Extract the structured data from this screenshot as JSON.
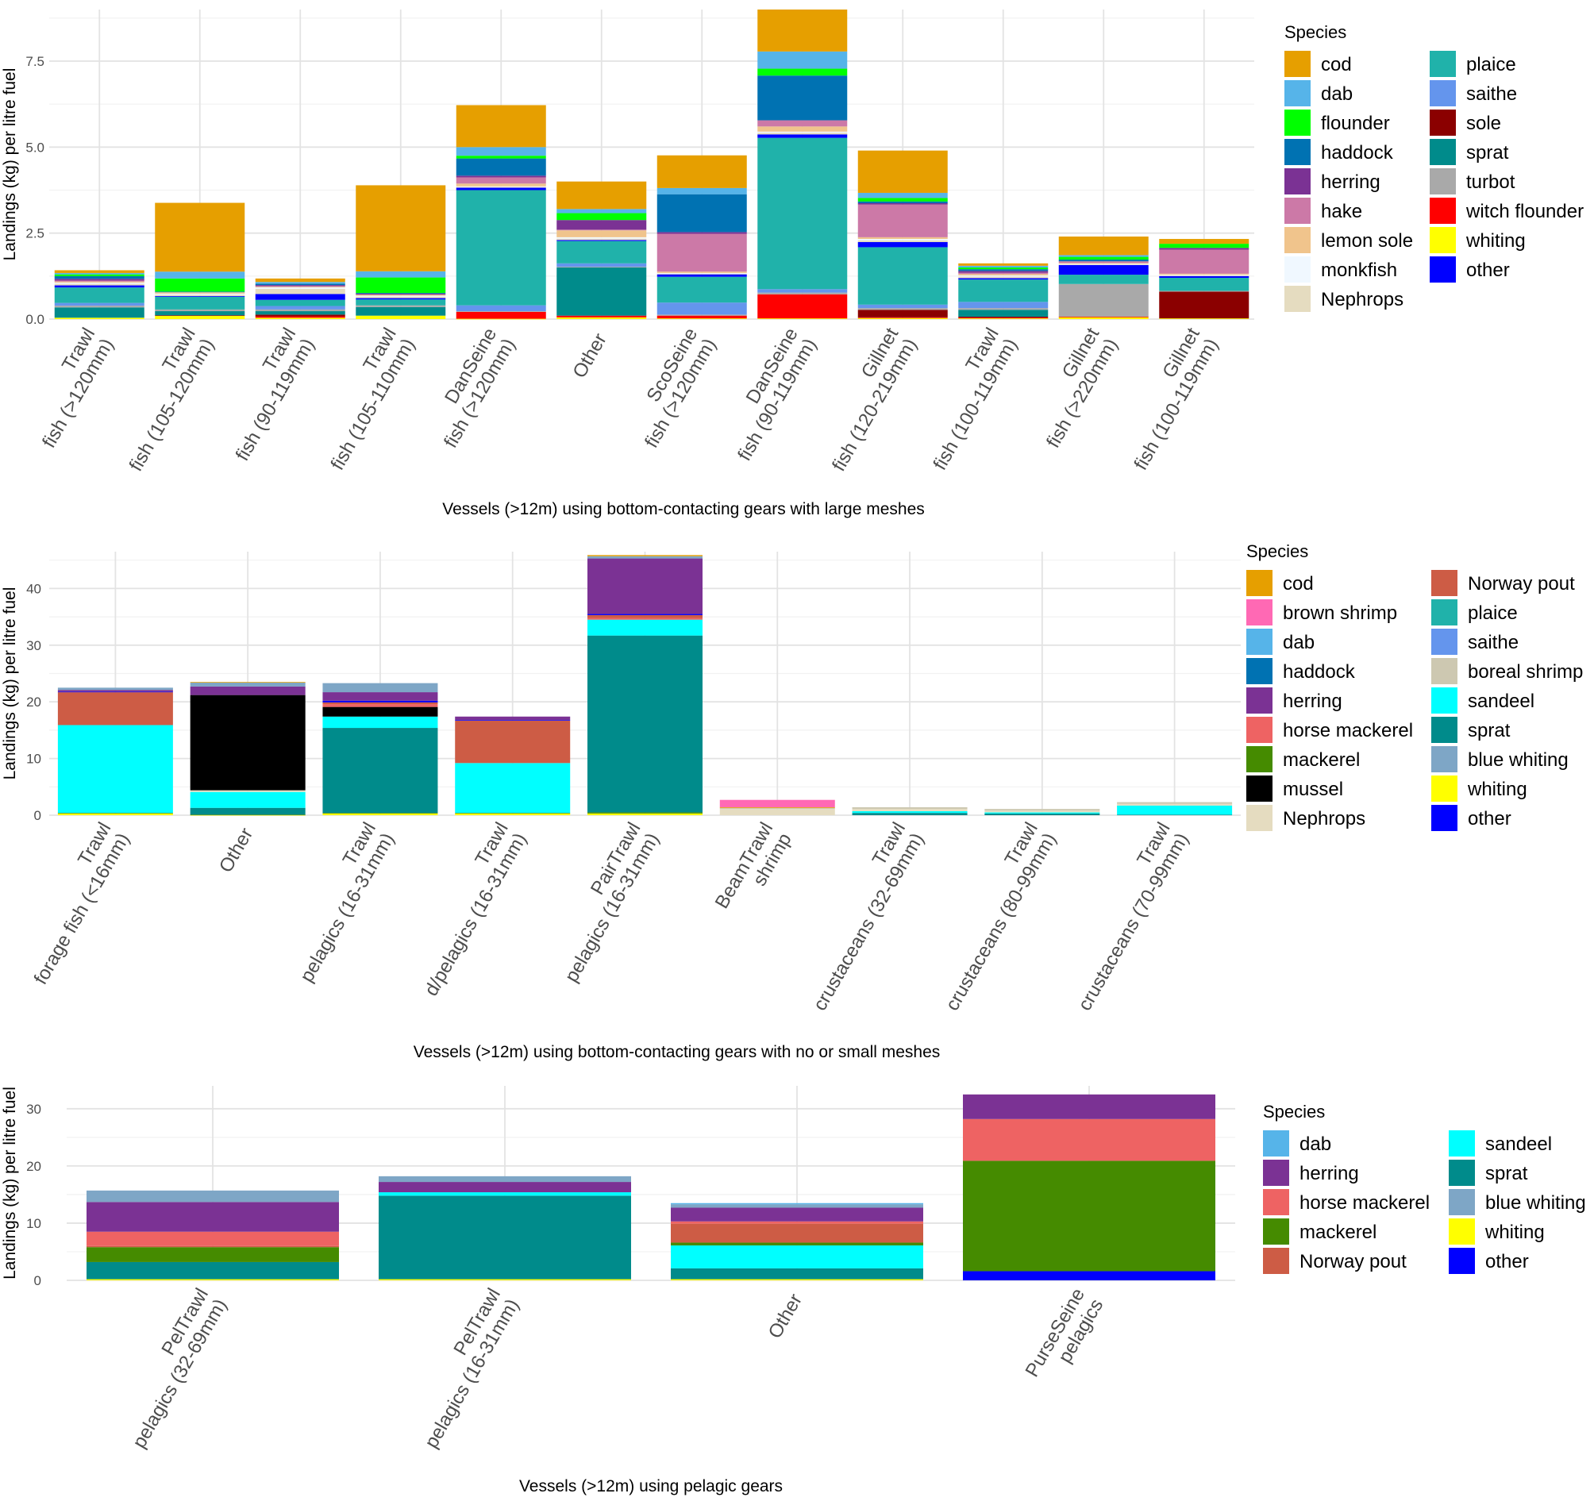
{
  "colors": {
    "cod": "#E69F00",
    "dab": "#56B4E9",
    "flounder": "#00FF00",
    "haddock": "#0072B2",
    "herring": "#7B3294",
    "hake": "#CC79A7",
    "lemon sole": "#F0C48C",
    "monkfish": "#F0F8FF",
    "Nephrops": "#E5DCC0",
    "plaice": "#20B2AA",
    "saithe": "#6495ED",
    "sole": "#8B0000",
    "sprat": "#008B8B",
    "turbot": "#A9A9A9",
    "witch flounder": "#FF0000",
    "whiting": "#FFFF00",
    "other": "#0000FF",
    "brown shrimp": "#FF69B4",
    "horse mackerel": "#EE6363",
    "mackerel": "#458B00",
    "mussel": "#000000",
    "Norway pout": "#CD5C45",
    "boreal shrimp": "#CDC8B1",
    "sandeel": "#00FFFF",
    "blue whiting": "#7EA6C6"
  },
  "chart_data": [
    {
      "type": "bar",
      "stacked": true,
      "title": "",
      "xlabel": "Vessels (>12m) using bottom-contacting gears with large meshes",
      "ylabel": "Landings (kg) per litre fuel",
      "ylim": [
        0,
        9.0
      ],
      "yticks": [
        "0.0",
        "2.5",
        "5.0",
        "7.5"
      ],
      "ytick_values": [
        0,
        2.5,
        5,
        7.5
      ],
      "legend_title": "Species",
      "legend": [
        [
          "cod",
          "plaice"
        ],
        [
          "dab",
          "saithe"
        ],
        [
          "flounder",
          "sole"
        ],
        [
          "haddock",
          "sprat"
        ],
        [
          "herring",
          "turbot"
        ],
        [
          "hake",
          "witch flounder"
        ],
        [
          "lemon sole",
          "whiting"
        ],
        [
          "monkfish",
          "other"
        ],
        [
          "Nephrops",
          null
        ]
      ],
      "categories": [
        [
          "Trawl",
          "fish (>120mm)"
        ],
        [
          "Trawl",
          "fish (105-120mm)"
        ],
        [
          "Trawl",
          "fish (90-119mm)"
        ],
        [
          "Trawl",
          "fish (105-110mm)"
        ],
        [
          "DanSeine",
          "fish (>120mm)"
        ],
        [
          "Other"
        ],
        [
          "ScoSeine",
          "fish (>120mm)"
        ],
        [
          "DanSeine",
          "fish (90-119mm)"
        ],
        [
          "Gillnet",
          "fish (120-219mm)"
        ],
        [
          "Trawl",
          "fish (100-119mm)"
        ],
        [
          "Gillnet",
          "fish (>220mm)"
        ],
        [
          "Gillnet",
          "fish (100-119mm)"
        ]
      ],
      "stack_order": [
        "whiting",
        "witch flounder",
        "sole",
        "sprat",
        "turbot",
        "saithe",
        "plaice",
        "other",
        "Nephrops",
        "monkfish",
        "lemon sole",
        "hake",
        "herring",
        "haddock",
        "flounder",
        "dab",
        "cod"
      ],
      "series": [
        {
          "name": "whiting",
          "values": [
            0.04,
            0.1,
            0.04,
            0.1,
            0.01,
            0.05,
            0.02,
            0.02,
            0.03,
            0.02,
            0.06,
            0.02
          ]
        },
        {
          "name": "witch flounder",
          "values": [
            0.0,
            0.0,
            0.04,
            0.0,
            0.2,
            0.05,
            0.08,
            0.7,
            0.02,
            0.02,
            0.01,
            0.0
          ]
        },
        {
          "name": "sole",
          "values": [
            0.0,
            0.01,
            0.05,
            0.0,
            0.0,
            0.0,
            0.0,
            0.0,
            0.22,
            0.03,
            0.0,
            0.78
          ]
        },
        {
          "name": "sprat",
          "values": [
            0.3,
            0.12,
            0.1,
            0.25,
            0.0,
            1.4,
            0.0,
            0.0,
            0.0,
            0.2,
            0.0,
            0.0
          ]
        },
        {
          "name": "turbot",
          "values": [
            0.05,
            0.05,
            0.05,
            0.05,
            0.02,
            0.02,
            0.03,
            0.05,
            0.05,
            0.05,
            0.95,
            0.02
          ]
        },
        {
          "name": "saithe",
          "values": [
            0.08,
            0.0,
            0.1,
            0.0,
            0.17,
            0.1,
            0.35,
            0.1,
            0.1,
            0.18,
            0.0,
            0.0
          ]
        },
        {
          "name": "plaice",
          "values": [
            0.45,
            0.37,
            0.18,
            0.17,
            3.35,
            0.65,
            0.75,
            4.4,
            1.67,
            0.65,
            0.27,
            0.38
          ]
        },
        {
          "name": "other",
          "values": [
            0.06,
            0.02,
            0.17,
            0.04,
            0.07,
            0.03,
            0.07,
            0.1,
            0.15,
            0.04,
            0.28,
            0.05
          ]
        },
        {
          "name": "Nephrops",
          "values": [
            0.05,
            0.04,
            0.15,
            0.04,
            0.02,
            0.04,
            0.02,
            0.05,
            0.05,
            0.05,
            0.02,
            0.02
          ]
        },
        {
          "name": "monkfish",
          "values": [
            0.03,
            0.03,
            0.04,
            0.03,
            0.02,
            0.04,
            0.02,
            0.03,
            0.04,
            0.03,
            0.02,
            0.02
          ]
        },
        {
          "name": "lemon sole",
          "values": [
            0.03,
            0.04,
            0.02,
            0.03,
            0.08,
            0.2,
            0.04,
            0.15,
            0.05,
            0.04,
            0.02,
            0.03
          ]
        },
        {
          "name": "hake",
          "values": [
            0.03,
            0.0,
            0.02,
            0.0,
            0.18,
            0.02,
            1.1,
            0.18,
            0.95,
            0.04,
            0.05,
            0.7
          ]
        },
        {
          "name": "herring",
          "values": [
            0.05,
            0.0,
            0.03,
            0.03,
            0.05,
            0.28,
            0.05,
            0.0,
            0.04,
            0.05,
            0.0,
            0.05
          ]
        },
        {
          "name": "haddock",
          "values": [
            0.08,
            0.02,
            0.04,
            0.02,
            0.5,
            0.0,
            1.1,
            1.3,
            0.05,
            0.05,
            0.05,
            0.0
          ]
        },
        {
          "name": "flounder",
          "values": [
            0.05,
            0.38,
            0.0,
            0.45,
            0.08,
            0.2,
            0.0,
            0.2,
            0.1,
            0.05,
            0.08,
            0.12
          ]
        },
        {
          "name": "dab",
          "values": [
            0.04,
            0.2,
            0.05,
            0.18,
            0.25,
            0.12,
            0.18,
            0.5,
            0.15,
            0.05,
            0.05,
            0.0
          ]
        },
        {
          "name": "cod",
          "values": [
            0.08,
            2.0,
            0.1,
            2.5,
            1.22,
            0.8,
            0.95,
            1.22,
            1.23,
            0.07,
            0.54,
            0.14
          ]
        }
      ]
    },
    {
      "type": "bar",
      "stacked": true,
      "title": "",
      "xlabel": "Vessels (>12m) using bottom-contacting gears with no or small meshes",
      "ylabel": "Landings (kg) per litre fuel",
      "ylim": [
        0,
        46.5
      ],
      "yticks": [
        "0",
        "10",
        "20",
        "30",
        "40"
      ],
      "ytick_values": [
        0,
        10,
        20,
        30,
        40
      ],
      "legend_title": "Species",
      "legend": [
        [
          "cod",
          "Norway pout"
        ],
        [
          "brown shrimp",
          "plaice"
        ],
        [
          "dab",
          "saithe"
        ],
        [
          "haddock",
          "boreal shrimp"
        ],
        [
          "herring",
          "sandeel"
        ],
        [
          "horse mackerel",
          "sprat"
        ],
        [
          "mackerel",
          "blue whiting"
        ],
        [
          "mussel",
          "whiting"
        ],
        [
          "Nephrops",
          "other"
        ]
      ],
      "categories": [
        [
          "Trawl",
          "forage fish (<16mm)"
        ],
        [
          "Other"
        ],
        [
          "Trawl",
          "pelagics (16-31mm)"
        ],
        [
          "Trawl",
          "d/pelagics (16-31mm)"
        ],
        [
          "PairTrawl",
          "pelagics (16-31mm)"
        ],
        [
          "BeamTrawl",
          "shrimp"
        ],
        [
          "Trawl",
          "crustaceans (32-69mm)"
        ],
        [
          "Trawl",
          "crustaceans (80-99mm)"
        ],
        [
          "Trawl",
          "crustaceans (70-99mm)"
        ]
      ],
      "stack_order": [
        "whiting",
        "mackerel",
        "sprat",
        "sandeel",
        "Nephrops",
        "boreal shrimp",
        "mussel",
        "horse mackerel",
        "Norway pout",
        "other",
        "herring",
        "blue whiting",
        "cod",
        "brown shrimp"
      ],
      "series": [
        {
          "name": "whiting",
          "values": [
            0.3,
            0.05,
            0.3,
            0.3,
            0.3,
            0.0,
            0.0,
            0.0,
            0.0
          ]
        },
        {
          "name": "mackerel",
          "values": [
            0.1,
            0.05,
            0.1,
            0.1,
            0.2,
            0.0,
            0.0,
            0.0,
            0.0
          ]
        },
        {
          "name": "sprat",
          "values": [
            0.0,
            1.2,
            15.0,
            0.0,
            31.2,
            0.0,
            0.4,
            0.3,
            0.1
          ]
        },
        {
          "name": "sandeel",
          "values": [
            15.5,
            2.8,
            2.0,
            8.8,
            2.8,
            0.0,
            0.3,
            0.2,
            1.6
          ]
        },
        {
          "name": "Nephrops",
          "values": [
            0.0,
            0.3,
            0.0,
            0.0,
            0.0,
            1.1,
            0.4,
            0.3,
            0.3
          ]
        },
        {
          "name": "boreal shrimp",
          "values": [
            0.0,
            0.0,
            0.0,
            0.0,
            0.0,
            0.2,
            0.3,
            0.3,
            0.3
          ]
        },
        {
          "name": "mussel",
          "values": [
            0.0,
            16.8,
            1.7,
            0.0,
            0.0,
            0.0,
            0.0,
            0.0,
            0.0
          ]
        },
        {
          "name": "horse mackerel",
          "values": [
            0.0,
            0.0,
            0.5,
            0.0,
            0.3,
            0.0,
            0.0,
            0.0,
            0.0
          ]
        },
        {
          "name": "Norway pout",
          "values": [
            5.8,
            0.0,
            0.3,
            7.5,
            0.5,
            0.0,
            0.0,
            0.0,
            0.0
          ]
        },
        {
          "name": "other",
          "values": [
            0.1,
            0.0,
            0.3,
            0.1,
            0.2,
            0.0,
            0.0,
            0.0,
            0.0
          ]
        },
        {
          "name": "herring",
          "values": [
            0.3,
            1.5,
            1.5,
            0.6,
            9.8,
            0.0,
            0.0,
            0.0,
            0.0
          ]
        },
        {
          "name": "blue whiting",
          "values": [
            0.4,
            0.7,
            1.6,
            0.0,
            0.4,
            0.0,
            0.0,
            0.0,
            0.0
          ]
        },
        {
          "name": "cod",
          "values": [
            0.0,
            0.1,
            0.0,
            0.0,
            0.2,
            0.1,
            0.0,
            0.0,
            0.0
          ]
        },
        {
          "name": "brown shrimp",
          "values": [
            0.0,
            0.0,
            0.0,
            0.0,
            0.0,
            1.3,
            0.0,
            0.0,
            0.0
          ]
        }
      ]
    },
    {
      "type": "bar",
      "stacked": true,
      "title": "",
      "xlabel": "Vessels (>12m) using pelagic gears",
      "ylabel": "Landings (kg) per litre fuel",
      "ylim": [
        0,
        34.0
      ],
      "yticks": [
        "0",
        "10",
        "20",
        "30"
      ],
      "ytick_values": [
        0,
        10,
        20,
        30
      ],
      "legend_title": "Species",
      "legend": [
        [
          "dab",
          "sandeel"
        ],
        [
          "herring",
          "sprat"
        ],
        [
          "horse mackerel",
          "blue whiting"
        ],
        [
          "mackerel",
          "whiting"
        ],
        [
          "Norway pout",
          "other"
        ]
      ],
      "categories": [
        [
          "PelTrawl",
          "pelagics (32-69mm)"
        ],
        [
          "PelTrawl",
          "pelagics (16-31mm)"
        ],
        [
          "Other"
        ],
        [
          "PurseSeine",
          "pelagics"
        ]
      ],
      "stack_order": [
        "whiting",
        "other",
        "sprat",
        "sandeel",
        "mackerel",
        "Norway pout",
        "horse mackerel",
        "herring",
        "blue whiting",
        "dab"
      ],
      "series": [
        {
          "name": "whiting",
          "values": [
            0.2,
            0.2,
            0.2,
            0.0
          ]
        },
        {
          "name": "other",
          "values": [
            0.0,
            0.0,
            0.0,
            1.6
          ]
        },
        {
          "name": "sprat",
          "values": [
            3.0,
            14.6,
            1.9,
            0.0
          ]
        },
        {
          "name": "sandeel",
          "values": [
            0.0,
            0.6,
            4.0,
            0.0
          ]
        },
        {
          "name": "mackerel",
          "values": [
            2.6,
            0.0,
            0.5,
            19.3
          ]
        },
        {
          "name": "Norway pout",
          "values": [
            0.2,
            0.0,
            3.3,
            0.0
          ]
        },
        {
          "name": "horse mackerel",
          "values": [
            2.5,
            0.0,
            0.4,
            7.3
          ]
        },
        {
          "name": "herring",
          "values": [
            5.2,
            1.8,
            2.4,
            4.3
          ]
        },
        {
          "name": "blue whiting",
          "values": [
            2.0,
            1.0,
            0.6,
            0.0
          ]
        },
        {
          "name": "dab",
          "values": [
            0.0,
            0.0,
            0.2,
            0.0
          ]
        }
      ]
    }
  ]
}
